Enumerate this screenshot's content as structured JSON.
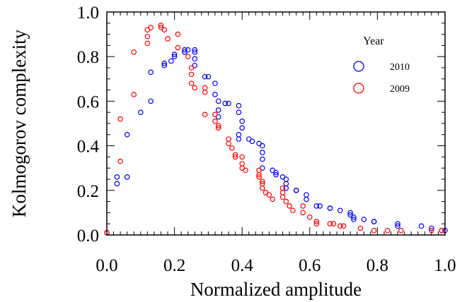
{
  "chart_data": {
    "type": "scatter",
    "title": "",
    "xlabel": "Normalized amplitude",
    "ylabel": "Kolmogorov complexity",
    "xlim": [
      0.0,
      1.0
    ],
    "ylim": [
      0.0,
      1.0
    ],
    "xticks": [
      "0.0",
      "0.2",
      "0.4",
      "0.6",
      "0.8",
      "1.0"
    ],
    "yticks": [
      "0.0",
      "0.2",
      "0.4",
      "0.6",
      "0.8",
      "1.0"
    ],
    "grid": false,
    "marker": "open-circle",
    "legend": {
      "title": "Year",
      "position": "top-right"
    },
    "series": [
      {
        "name": "2010",
        "color": "#0000ff",
        "points": [
          [
            0.0,
            0.01
          ],
          [
            0.03,
            0.23
          ],
          [
            0.03,
            0.26
          ],
          [
            0.06,
            0.26
          ],
          [
            0.06,
            0.45
          ],
          [
            0.1,
            0.55
          ],
          [
            0.13,
            0.6
          ],
          [
            0.13,
            0.73
          ],
          [
            0.17,
            0.76
          ],
          [
            0.17,
            0.77
          ],
          [
            0.19,
            0.78
          ],
          [
            0.2,
            0.8
          ],
          [
            0.2,
            0.81
          ],
          [
            0.23,
            0.82
          ],
          [
            0.23,
            0.83
          ],
          [
            0.24,
            0.83
          ],
          [
            0.26,
            0.76
          ],
          [
            0.26,
            0.79
          ],
          [
            0.26,
            0.82
          ],
          [
            0.26,
            0.83
          ],
          [
            0.29,
            0.71
          ],
          [
            0.3,
            0.71
          ],
          [
            0.32,
            0.68
          ],
          [
            0.32,
            0.63
          ],
          [
            0.33,
            0.6
          ],
          [
            0.33,
            0.56
          ],
          [
            0.33,
            0.53
          ],
          [
            0.35,
            0.59
          ],
          [
            0.36,
            0.59
          ],
          [
            0.39,
            0.58
          ],
          [
            0.39,
            0.55
          ],
          [
            0.4,
            0.51
          ],
          [
            0.4,
            0.48
          ],
          [
            0.39,
            0.45
          ],
          [
            0.39,
            0.43
          ],
          [
            0.42,
            0.43
          ],
          [
            0.43,
            0.42
          ],
          [
            0.45,
            0.41
          ],
          [
            0.46,
            0.4
          ],
          [
            0.46,
            0.37
          ],
          [
            0.46,
            0.34
          ],
          [
            0.46,
            0.3
          ],
          [
            0.49,
            0.29
          ],
          [
            0.5,
            0.28
          ],
          [
            0.5,
            0.27
          ],
          [
            0.52,
            0.26
          ],
          [
            0.53,
            0.25
          ],
          [
            0.53,
            0.23
          ],
          [
            0.53,
            0.21
          ],
          [
            0.56,
            0.2
          ],
          [
            0.56,
            0.2
          ],
          [
            0.59,
            0.18
          ],
          [
            0.59,
            0.16
          ],
          [
            0.62,
            0.13
          ],
          [
            0.63,
            0.13
          ],
          [
            0.66,
            0.12
          ],
          [
            0.66,
            0.12
          ],
          [
            0.69,
            0.11
          ],
          [
            0.72,
            0.1
          ],
          [
            0.72,
            0.09
          ],
          [
            0.73,
            0.08
          ],
          [
            0.73,
            0.07
          ],
          [
            0.76,
            0.07
          ],
          [
            0.79,
            0.06
          ],
          [
            0.79,
            0.06
          ],
          [
            0.86,
            0.05
          ],
          [
            0.86,
            0.04
          ],
          [
            0.93,
            0.04
          ],
          [
            0.96,
            0.03
          ],
          [
            0.99,
            0.02
          ],
          [
            1.0,
            0.02
          ]
        ]
      },
      {
        "name": "2009",
        "color": "#ff0000",
        "points": [
          [
            0.0,
            0.01
          ],
          [
            0.04,
            0.33
          ],
          [
            0.04,
            0.52
          ],
          [
            0.08,
            0.63
          ],
          [
            0.08,
            0.82
          ],
          [
            0.12,
            0.86
          ],
          [
            0.12,
            0.89
          ],
          [
            0.12,
            0.92
          ],
          [
            0.13,
            0.93
          ],
          [
            0.16,
            0.93
          ],
          [
            0.16,
            0.94
          ],
          [
            0.17,
            0.92
          ],
          [
            0.18,
            0.88
          ],
          [
            0.21,
            0.9
          ],
          [
            0.21,
            0.84
          ],
          [
            0.24,
            0.8
          ],
          [
            0.25,
            0.75
          ],
          [
            0.25,
            0.72
          ],
          [
            0.25,
            0.68
          ],
          [
            0.26,
            0.66
          ],
          [
            0.29,
            0.66
          ],
          [
            0.29,
            0.64
          ],
          [
            0.29,
            0.54
          ],
          [
            0.32,
            0.54
          ],
          [
            0.32,
            0.51
          ],
          [
            0.33,
            0.49
          ],
          [
            0.33,
            0.48
          ],
          [
            0.36,
            0.43
          ],
          [
            0.36,
            0.41
          ],
          [
            0.37,
            0.39
          ],
          [
            0.38,
            0.36
          ],
          [
            0.38,
            0.35
          ],
          [
            0.4,
            0.35
          ],
          [
            0.4,
            0.32
          ],
          [
            0.4,
            0.3
          ],
          [
            0.41,
            0.29
          ],
          [
            0.45,
            0.29
          ],
          [
            0.45,
            0.27
          ],
          [
            0.45,
            0.26
          ],
          [
            0.46,
            0.24
          ],
          [
            0.46,
            0.23
          ],
          [
            0.46,
            0.21
          ],
          [
            0.47,
            0.19
          ],
          [
            0.48,
            0.18
          ],
          [
            0.49,
            0.16
          ],
          [
            0.52,
            0.21
          ],
          [
            0.52,
            0.19
          ],
          [
            0.52,
            0.17
          ],
          [
            0.53,
            0.15
          ],
          [
            0.54,
            0.13
          ],
          [
            0.55,
            0.11
          ],
          [
            0.58,
            0.13
          ],
          [
            0.58,
            0.1
          ],
          [
            0.6,
            0.08
          ],
          [
            0.62,
            0.06
          ],
          [
            0.62,
            0.05
          ],
          [
            0.66,
            0.05
          ],
          [
            0.67,
            0.05
          ],
          [
            0.69,
            0.04
          ],
          [
            0.7,
            0.04
          ],
          [
            0.75,
            0.03
          ],
          [
            0.79,
            0.02
          ],
          [
            0.83,
            0.02
          ],
          [
            0.87,
            0.02
          ],
          [
            0.96,
            0.02
          ],
          [
            0.99,
            0.02
          ]
        ]
      }
    ]
  }
}
